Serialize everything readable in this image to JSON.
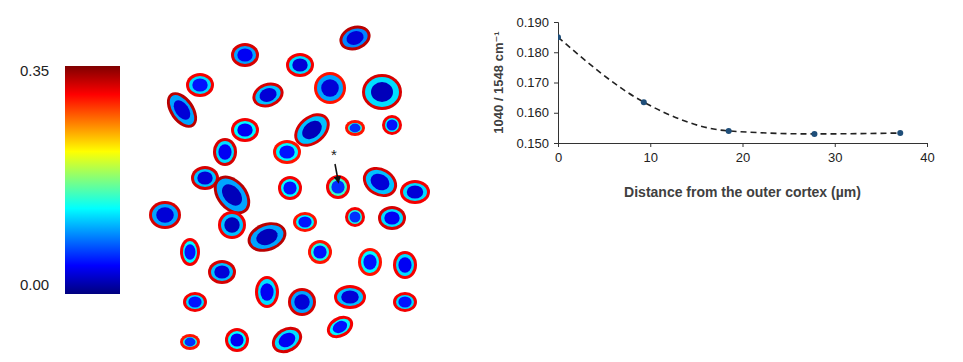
{
  "chart_data": [
    {
      "type": "heatmap",
      "colorbar": {
        "range": [
          0,
          0.35
        ],
        "ticks": [
          {
            "value": 0,
            "label": "0.00"
          },
          {
            "value": 0.35,
            "label": "0.35"
          }
        ]
      },
      "annotations": [
        "*"
      ],
      "cells": [
        {
          "edge": 0.32,
          "body": 0.1,
          "core": 0.04
        },
        {
          "edge": 0.31,
          "body": 0.12,
          "core": 0.03
        },
        {
          "edge": 0.33,
          "body": 0.09,
          "core": 0.03
        },
        {
          "edge": 0.31,
          "body": 0.12,
          "core": 0.05
        },
        {
          "edge": 0.32,
          "body": 0.11,
          "core": 0.03
        },
        {
          "edge": 0.3,
          "body": 0.1,
          "core": 0.03
        },
        {
          "edge": 0.32,
          "body": 0.12,
          "core": 0.02
        },
        {
          "edge": 0.33,
          "body": 0.1,
          "core": 0.03
        },
        {
          "edge": 0.31,
          "body": 0.13,
          "core": 0.04
        },
        {
          "edge": 0.32,
          "body": 0.11,
          "core": 0.02
        },
        {
          "edge": 0.3,
          "body": 0.14,
          "core": 0.06
        },
        {
          "edge": 0.31,
          "body": 0.13,
          "core": 0.05
        },
        {
          "edge": 0.32,
          "body": 0.12,
          "core": 0.04
        },
        {
          "edge": 0.3,
          "body": 0.13,
          "core": 0.05
        },
        {
          "edge": 0.31,
          "body": 0.15,
          "core": 0.06
        },
        {
          "edge": 0.32,
          "body": 0.11,
          "core": 0.03
        },
        {
          "edge": 0.33,
          "body": 0.1,
          "core": 0.02
        },
        {
          "edge": 0.31,
          "body": 0.13,
          "core": 0.05
        },
        {
          "edge": 0.32,
          "body": 0.11,
          "core": 0.03
        },
        {
          "edge": 0.31,
          "body": 0.12,
          "core": 0.03
        },
        {
          "edge": 0.32,
          "body": 0.1,
          "core": 0.03
        },
        {
          "edge": 0.31,
          "body": 0.11,
          "core": 0.02
        },
        {
          "edge": 0.33,
          "body": 0.1,
          "core": 0.02
        },
        {
          "edge": 0.3,
          "body": 0.13,
          "core": 0.05
        },
        {
          "edge": 0.31,
          "body": 0.14,
          "core": 0.06
        },
        {
          "edge": 0.32,
          "body": 0.12,
          "core": 0.04
        },
        {
          "edge": 0.31,
          "body": 0.13,
          "core": 0.05
        },
        {
          "edge": 0.3,
          "body": 0.14,
          "core": 0.05
        },
        {
          "edge": 0.31,
          "body": 0.12,
          "core": 0.04
        },
        {
          "edge": 0.32,
          "body": 0.11,
          "core": 0.03
        },
        {
          "edge": 0.31,
          "body": 0.12,
          "core": 0.04
        },
        {
          "edge": 0.32,
          "body": 0.1,
          "core": 0.03
        },
        {
          "edge": 0.31,
          "body": 0.11,
          "core": 0.03
        },
        {
          "edge": 0.3,
          "body": 0.13,
          "core": 0.05
        },
        {
          "edge": 0.31,
          "body": 0.12,
          "core": 0.05
        },
        {
          "edge": 0.31,
          "body": 0.13,
          "core": 0.04
        },
        {
          "edge": 0.32,
          "body": 0.12,
          "core": 0.04
        },
        {
          "edge": 0.31,
          "body": 0.13,
          "core": 0.05
        },
        {
          "edge": 0.3,
          "body": 0.14,
          "core": 0.06
        },
        {
          "edge": 0.31,
          "body": 0.12,
          "core": 0.05
        }
      ]
    },
    {
      "type": "line",
      "x": [
        0,
        9.3,
        18.5,
        27.8,
        37.1
      ],
      "values": [
        0.185,
        0.1635,
        0.154,
        0.153,
        0.1533
      ],
      "xlim": [
        0,
        40
      ],
      "xticks": [
        0,
        10,
        20,
        30,
        40
      ],
      "ylim": [
        0.15,
        0.19
      ],
      "yticks": [
        {
          "value": 0.15,
          "label": "0.150"
        },
        {
          "value": 0.16,
          "label": "0.160"
        },
        {
          "value": 0.17,
          "label": "0.170"
        },
        {
          "value": 0.18,
          "label": "0.180"
        },
        {
          "value": 0.19,
          "label": "0.190"
        }
      ],
      "x_label": "Distance from the outer cortex (µm)",
      "y_label": "1040 / 1548 cm⁻¹",
      "color": "#1f4e79",
      "marker": "circle",
      "line_style": "dashed"
    }
  ]
}
